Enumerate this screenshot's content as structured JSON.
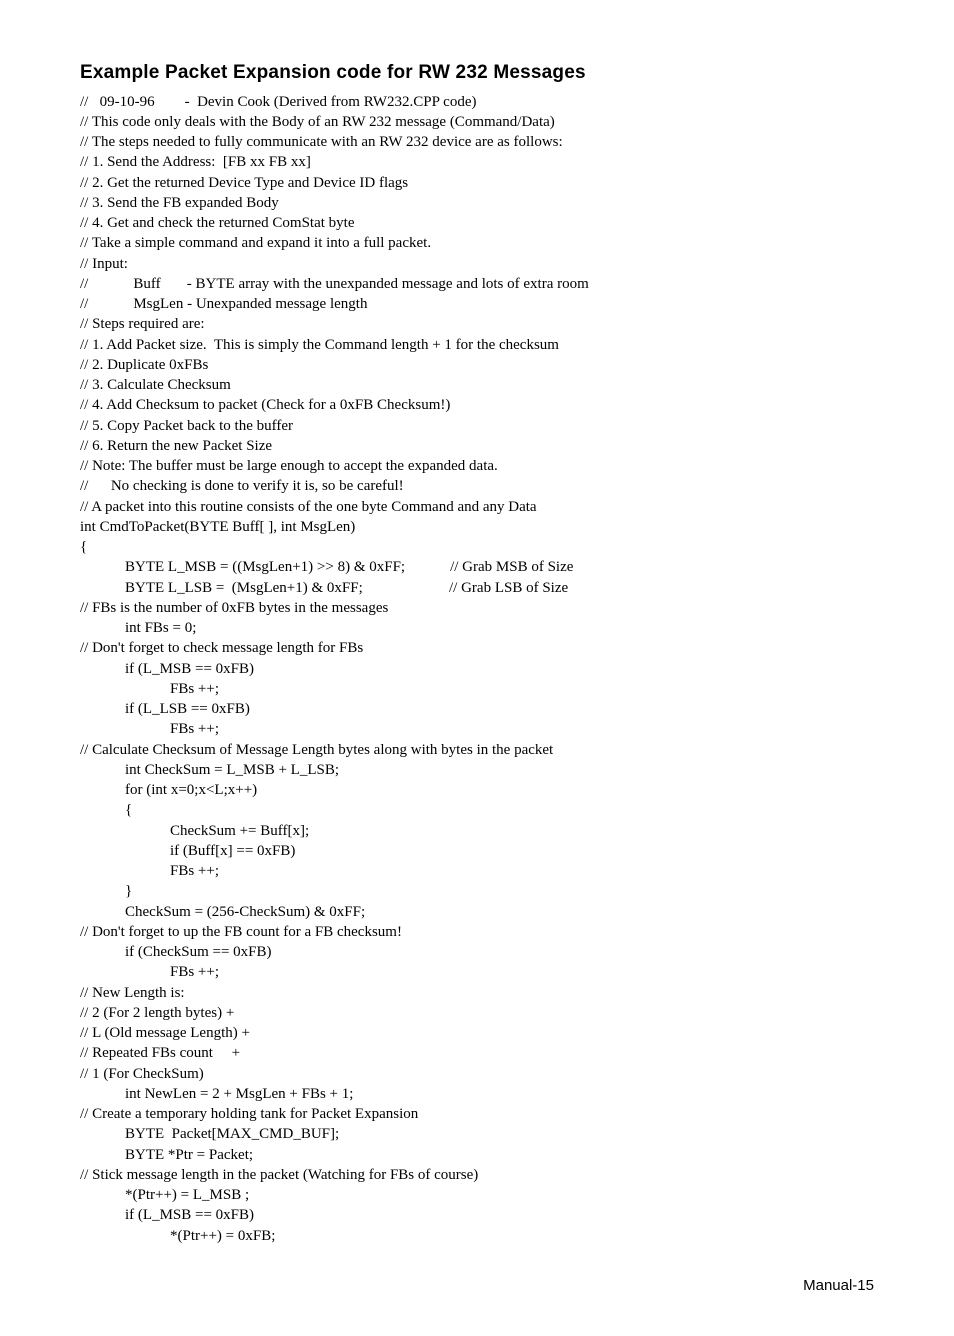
{
  "title": "Example Packet Expansion code for RW 232 Messages",
  "code_lines": [
    "//   09-10-96        -  Devin Cook (Derived from RW232.CPP code)",
    "// This code only deals with the Body of an RW 232 message (Command/Data)",
    "// The steps needed to fully communicate with an RW 232 device are as follows:",
    "// 1. Send the Address:  [FB xx FB xx]",
    "// 2. Get the returned Device Type and Device ID flags",
    "// 3. Send the FB expanded Body",
    "// 4. Get and check the returned ComStat byte",
    "// Take a simple command and expand it into a full packet.",
    "// Input:",
    "//            Buff       - BYTE array with the unexpanded message and lots of extra room",
    "//            MsgLen - Unexpanded message length",
    "// Steps required are:",
    "// 1. Add Packet size.  This is simply the Command length + 1 for the checksum",
    "// 2. Duplicate 0xFBs",
    "// 3. Calculate Checksum",
    "// 4. Add Checksum to packet (Check for a 0xFB Checksum!)",
    "// 5. Copy Packet back to the buffer",
    "// 6. Return the new Packet Size",
    "// Note: The buffer must be large enough to accept the expanded data.",
    "//      No checking is done to verify it is, so be careful!",
    "// A packet into this routine consists of the one byte Command and any Data",
    "int CmdToPacket(BYTE Buff[ ], int MsgLen)",
    "{",
    "            BYTE L_MSB = ((MsgLen+1) >> 8) & 0xFF;            // Grab MSB of Size",
    "            BYTE L_LSB =  (MsgLen+1) & 0xFF;                       // Grab LSB of Size",
    "// FBs is the number of 0xFB bytes in the messages",
    "            int FBs = 0;",
    "// Don't forget to check message length for FBs",
    "            if (L_MSB == 0xFB)",
    "                        FBs ++;",
    "            if (L_LSB == 0xFB)",
    "                        FBs ++;",
    "// Calculate Checksum of Message Length bytes along with bytes in the packet",
    "            int CheckSum = L_MSB + L_LSB;",
    "            for (int x=0;x<L;x++)",
    "            {",
    "                        CheckSum += Buff[x];",
    "                        if (Buff[x] == 0xFB)",
    "                        FBs ++;",
    "            }",
    "            CheckSum = (256-CheckSum) & 0xFF;",
    "// Don't forget to up the FB count for a FB checksum!",
    "            if (CheckSum == 0xFB)",
    "                        FBs ++;",
    "// New Length is:",
    "// 2 (For 2 length bytes) +",
    "// L (Old message Length) +",
    "// Repeated FBs count     +",
    "// 1 (For CheckSum)",
    "            int NewLen = 2 + MsgLen + FBs + 1;",
    "// Create a temporary holding tank for Packet Expansion",
    "            BYTE  Packet[MAX_CMD_BUF];",
    "            BYTE *Ptr = Packet;",
    "// Stick message length in the packet (Watching for FBs of course)",
    "            *(Ptr++) = L_MSB ;",
    "            if (L_MSB == 0xFB)",
    "                        *(Ptr++) = 0xFB;"
  ],
  "footer": "Manual-15"
}
